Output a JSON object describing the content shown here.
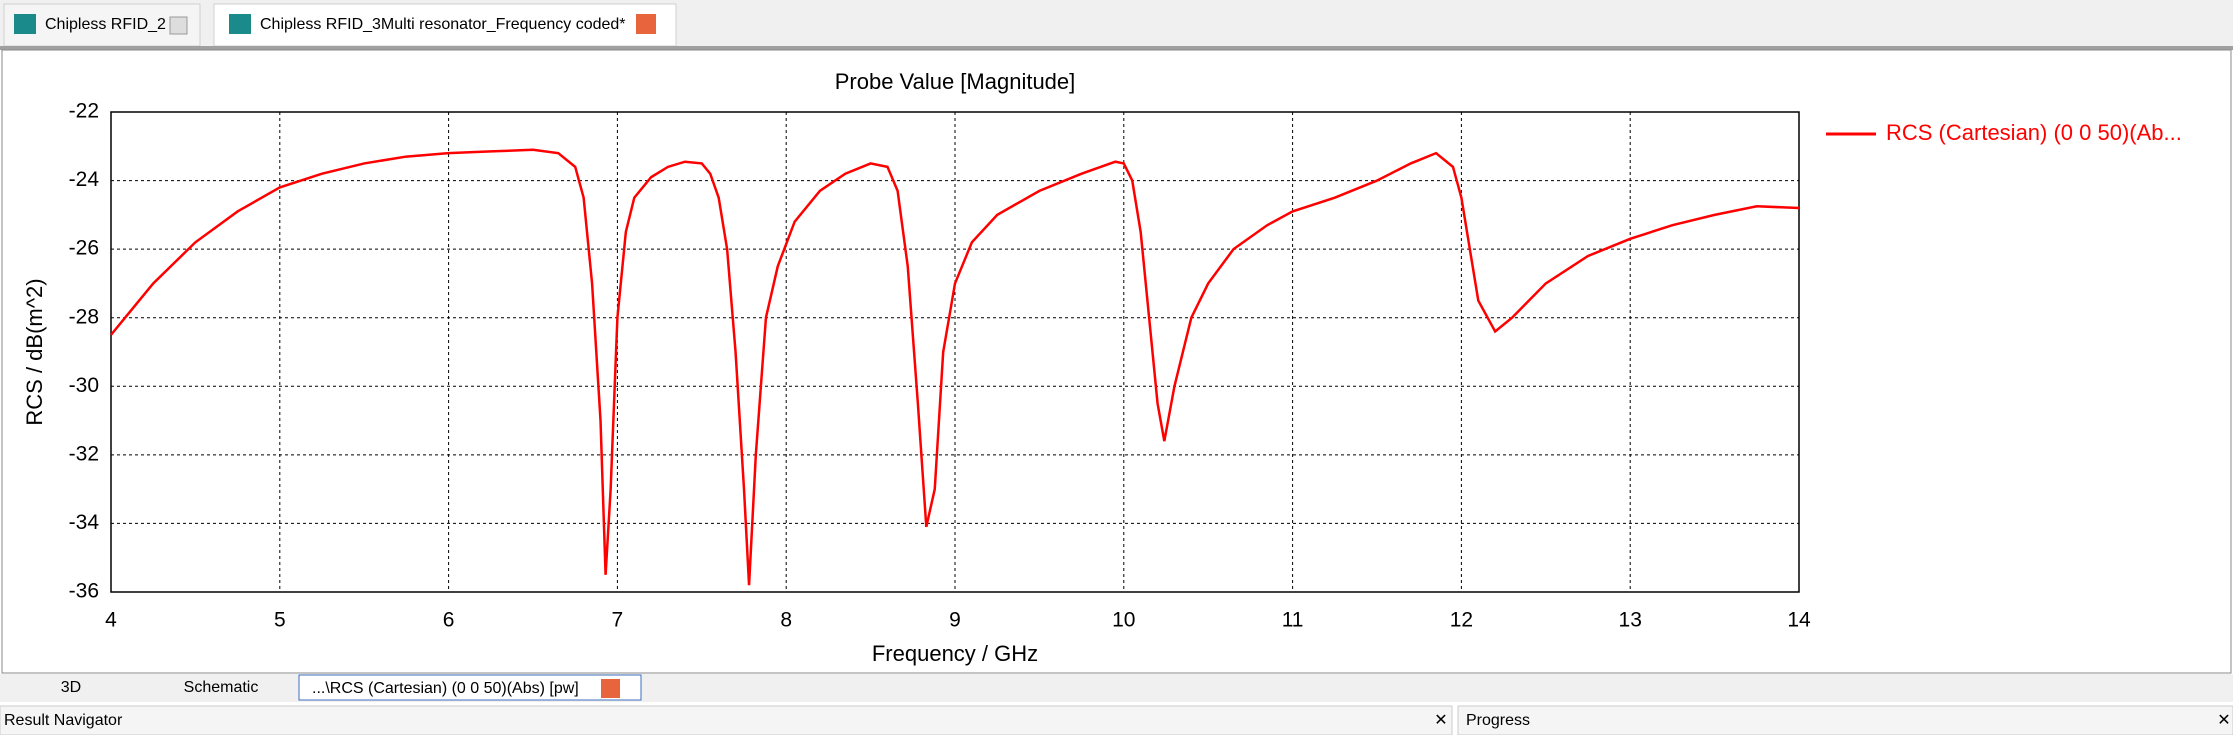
{
  "ui": {
    "tabs": [
      "Chipless RFID_2",
      "Chipless RFID_3Multi resonator_Frequency coded*"
    ],
    "bottom_tabs": [
      "3D",
      "Schematic",
      "...\\RCS (Cartesian) (0 0 50)(Abs) [pw]"
    ],
    "panels": [
      "Result Navigator",
      "Progress"
    ]
  },
  "chart_data": {
    "type": "line",
    "title": "Probe Value [Magnitude]",
    "x_label": "Frequency / GHz",
    "y_label": "RCS / dB(m^2)",
    "xlim": [
      4,
      14
    ],
    "xticks": [
      4,
      5,
      6,
      7,
      8,
      9,
      10,
      11,
      12,
      13,
      14
    ],
    "ylim": [
      -36,
      -22
    ],
    "yticks": [
      -22,
      -24,
      -26,
      -28,
      -30,
      -32,
      -34,
      -36
    ],
    "grid": true,
    "legend": "right",
    "x": [
      4,
      4.25,
      4.5,
      4.75,
      5,
      5.25,
      5.5,
      5.75,
      6,
      6.25,
      6.5,
      6.65,
      6.75,
      6.8,
      6.85,
      6.9,
      6.93,
      6.96,
      7.0,
      7.05,
      7.1,
      7.2,
      7.3,
      7.4,
      7.5,
      7.55,
      7.6,
      7.65,
      7.7,
      7.75,
      7.78,
      7.82,
      7.88,
      7.95,
      8.05,
      8.2,
      8.35,
      8.5,
      8.6,
      8.66,
      8.72,
      8.78,
      8.83,
      8.88,
      8.93,
      9.0,
      9.1,
      9.25,
      9.5,
      9.75,
      9.95,
      10.0,
      10.05,
      10.1,
      10.15,
      10.2,
      10.24,
      10.3,
      10.4,
      10.5,
      10.65,
      10.85,
      11.0,
      11.25,
      11.5,
      11.7,
      11.85,
      11.95,
      12.0,
      12.05,
      12.1,
      12.2,
      12.3,
      12.5,
      12.75,
      13,
      13.25,
      13.5,
      13.75,
      14
    ],
    "series": [
      {
        "name": "RCS (Cartesian) (0 0 50)(Ab...",
        "color": "#ff0000",
        "values": [
          -28.5,
          -27.0,
          -25.8,
          -24.9,
          -24.2,
          -23.8,
          -23.5,
          -23.3,
          -23.2,
          -23.15,
          -23.1,
          -23.2,
          -23.6,
          -24.5,
          -27,
          -31,
          -35.5,
          -33,
          -28,
          -25.5,
          -24.5,
          -23.9,
          -23.6,
          -23.45,
          -23.5,
          -23.8,
          -24.5,
          -26,
          -29,
          -33,
          -35.8,
          -32,
          -28,
          -26.5,
          -25.2,
          -24.3,
          -23.8,
          -23.5,
          -23.6,
          -24.3,
          -26.5,
          -30.5,
          -34.1,
          -33,
          -29,
          -27,
          -25.8,
          -25,
          -24.3,
          -23.8,
          -23.45,
          -23.5,
          -24,
          -25.5,
          -28,
          -30.5,
          -31.6,
          -30,
          -28,
          -27,
          -26,
          -25.3,
          -24.9,
          -24.5,
          -24.0,
          -23.5,
          -23.2,
          -23.6,
          -24.5,
          -26,
          -27.5,
          -28.4,
          -28,
          -27,
          -26.2,
          -25.7,
          -25.3,
          -25,
          -24.75,
          -24.8
        ]
      }
    ]
  }
}
